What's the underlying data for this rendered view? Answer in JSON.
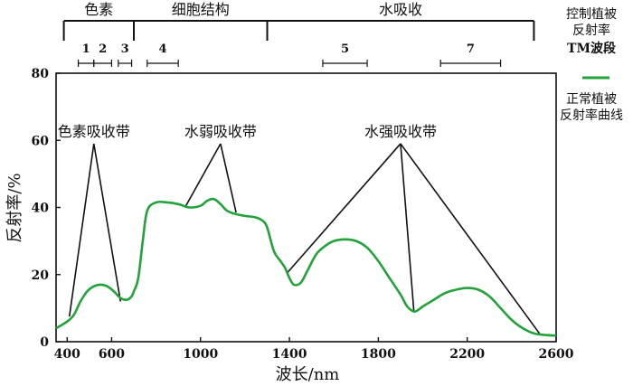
{
  "chart_data": {
    "type": "line",
    "xlabel": "波长/nm",
    "ylabel": "反射率/%",
    "xlim": [
      350,
      2600
    ],
    "ylim": [
      0,
      80
    ],
    "x_ticks": [
      400,
      600,
      1000,
      1400,
      1800,
      2200,
      2600
    ],
    "y_ticks": [
      0,
      20,
      40,
      60,
      80
    ],
    "grid": false,
    "series": [
      {
        "name": "正常植被反射率曲线",
        "color": "#22a33a",
        "x": [
          350,
          400,
          430,
          460,
          490,
          520,
          550,
          580,
          610,
          640,
          670,
          690,
          700,
          720,
          740,
          760,
          800,
          850,
          900,
          950,
          1000,
          1030,
          1060,
          1090,
          1120,
          1160,
          1200,
          1250,
          1280,
          1300,
          1330,
          1360,
          1380,
          1400,
          1420,
          1450,
          1480,
          1520,
          1560,
          1600,
          1650,
          1700,
          1750,
          1800,
          1850,
          1900,
          1930,
          1960,
          1980,
          2000,
          2050,
          2100,
          2150,
          2200,
          2250,
          2300,
          2350,
          2400,
          2450,
          2500,
          2550,
          2600
        ],
        "y": [
          4,
          6,
          8,
          12,
          15,
          16.5,
          17,
          16.5,
          15,
          13,
          12.5,
          13.5,
          15,
          19,
          30,
          39,
          41.5,
          41.5,
          41,
          40,
          40.5,
          42,
          42.5,
          41,
          39,
          38,
          37.5,
          37,
          36,
          34,
          27,
          24,
          22,
          19,
          17,
          17.5,
          21,
          26,
          28.5,
          30,
          30.5,
          30,
          28,
          24,
          19,
          14,
          10.5,
          9,
          9.5,
          10.5,
          12.5,
          14.5,
          15.5,
          16,
          15.5,
          13.5,
          10,
          6.5,
          4,
          2.5,
          2,
          1.8
        ]
      }
    ],
    "annotations": [
      {
        "label": "色素吸收带",
        "peak": [
          520,
          59
        ],
        "ends": [
          [
            410,
            7.5
          ],
          [
            640,
            12
          ]
        ]
      },
      {
        "label": "水弱吸收带",
        "peak": [
          1090,
          59
        ],
        "ends": [
          [
            930,
            40
          ],
          [
            1160,
            38.5
          ]
        ]
      },
      {
        "label": "水强吸收带",
        "peak": [
          1900,
          59
        ],
        "ends": [
          [
            1390,
            20.5
          ],
          [
            1960,
            9
          ],
          [
            2530,
            2
          ]
        ]
      }
    ],
    "regions": [
      {
        "label": "色素",
        "from": 385,
        "to": 700
      },
      {
        "label": "细胞结构",
        "from": 700,
        "to": 1300
      },
      {
        "label": "水吸收",
        "from": 1300,
        "to": 2500
      }
    ],
    "tm_bands": [
      {
        "label": "1",
        "from": 450,
        "to": 520
      },
      {
        "label": "2",
        "from": 520,
        "to": 600
      },
      {
        "label": "3",
        "from": 630,
        "to": 690
      },
      {
        "label": "4",
        "from": 760,
        "to": 900
      },
      {
        "label": "5",
        "from": 1550,
        "to": 1750
      },
      {
        "label": "7",
        "from": 2080,
        "to": 2350
      }
    ]
  },
  "legend": {
    "title_line1": "控制植被",
    "title_line2": "反射率",
    "tm_label": "TM波段",
    "curve_line1": "正常植被",
    "curve_line2": "反射率曲线"
  }
}
